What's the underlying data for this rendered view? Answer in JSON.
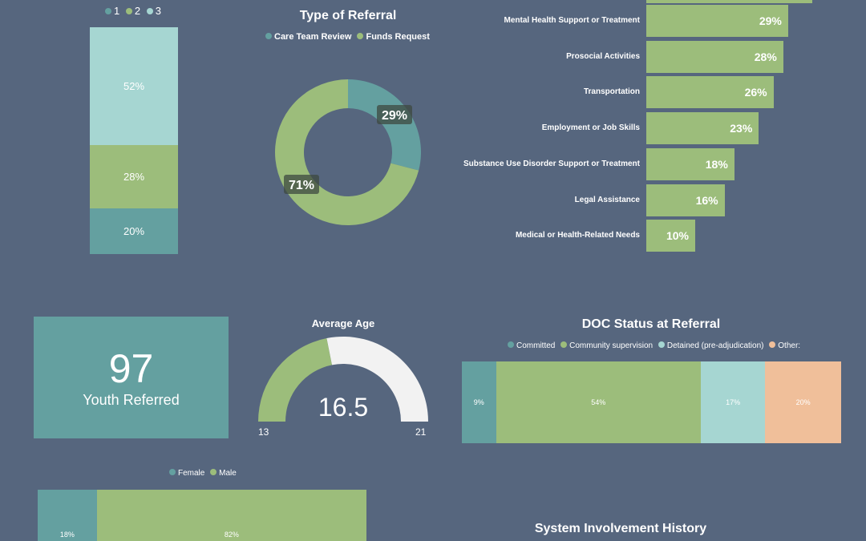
{
  "colors": {
    "background": "#56667e",
    "teal": "#64a0a0",
    "green": "#9cbd7b",
    "light_teal": "#a6d6d2",
    "peach": "#f0bf9a",
    "gauge_empty": "#f2f2f2"
  },
  "chart_data": [
    {
      "type": "bar",
      "stacked": true,
      "legend": [
        "1",
        "2",
        "3"
      ],
      "segments": [
        {
          "name": "3",
          "value": 52,
          "label": "52%"
        },
        {
          "name": "2",
          "value": 28,
          "label": "28%"
        },
        {
          "name": "1",
          "value": 20,
          "label": "20%"
        }
      ]
    },
    {
      "type": "pie",
      "donut": true,
      "title": "Type of Referral",
      "legend": [
        "Care Team Review",
        "Funds Request"
      ],
      "slices": [
        {
          "name": "Care Team Review",
          "value": 29,
          "label": "29%"
        },
        {
          "name": "Funds Request",
          "value": 71,
          "label": "71%"
        }
      ]
    },
    {
      "type": "bar",
      "orientation": "horizontal",
      "categories": [
        "Mental Health Support or Treatment",
        "Prosocial Activities",
        "Transportation",
        "Employment or Job Skills",
        "Substance Use Disorder Support or Treatment",
        "Legal Assistance",
        "Medical or Health-Related Needs"
      ],
      "values": [
        29,
        28,
        26,
        23,
        18,
        16,
        10
      ],
      "labels": [
        "29%",
        "28%",
        "26%",
        "23%",
        "18%",
        "16%",
        "10%"
      ],
      "partial_top_value": 34
    },
    {
      "type": "gauge",
      "title": "Average Age",
      "value": 16.5,
      "value_label": "16.5",
      "min": 13,
      "max": 21,
      "min_label": "13",
      "max_label": "21"
    },
    {
      "type": "bar",
      "stacked": true,
      "orientation": "horizontal",
      "title": "DOC Status at Referral",
      "legend": [
        "Committed",
        "Community supervision",
        "Detained (pre-adjudication)",
        "Other:"
      ],
      "segments": [
        {
          "name": "Committed",
          "value": 9,
          "label": "9%"
        },
        {
          "name": "Community supervision",
          "value": 54,
          "label": "54%"
        },
        {
          "name": "Detained (pre-adjudication)",
          "value": 17,
          "label": "17%"
        },
        {
          "name": "Other:",
          "value": 20,
          "label": "20%"
        }
      ]
    },
    {
      "type": "bar",
      "stacked": true,
      "orientation": "horizontal",
      "legend": [
        "Female",
        "Male"
      ],
      "segments": [
        {
          "name": "Female",
          "value": 18,
          "label": "18%"
        },
        {
          "name": "Male",
          "value": 82,
          "label": "82%"
        }
      ]
    }
  ],
  "kpi": {
    "value": "97",
    "label": "Youth Referred"
  },
  "section_title": "System Involvement History"
}
